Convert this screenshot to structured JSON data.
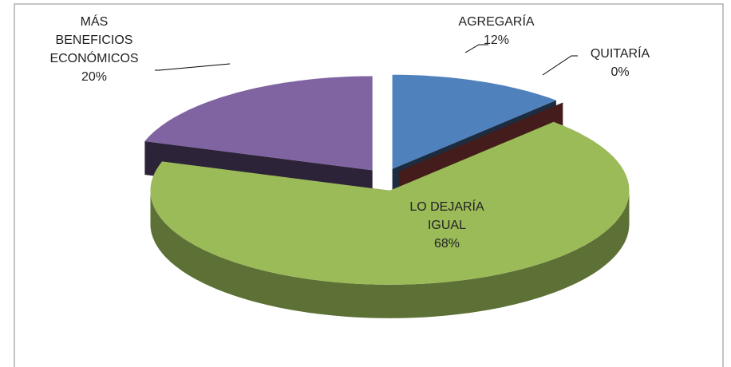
{
  "chart_data": {
    "type": "pie3d",
    "categories": [
      "AGREGARÍA",
      "QUITARÍA",
      "LO DEJARÍA IGUAL",
      "MÁS BENEFICIOS ECONÓMICOS"
    ],
    "values": [
      12,
      0,
      68,
      20
    ],
    "value_labels": [
      "12%",
      "0%",
      "68%",
      "20%"
    ],
    "colors": [
      "#4f81bd",
      "#c0504d",
      "#9bbb59",
      "#8064a2"
    ]
  }
}
